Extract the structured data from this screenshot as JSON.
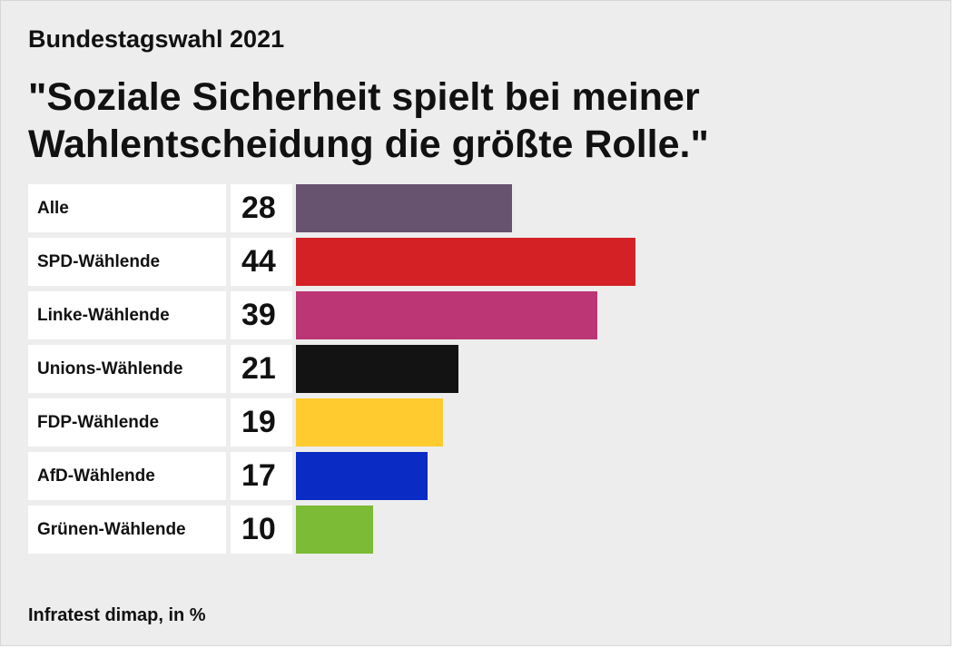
{
  "header": {
    "kicker": "Bundestagswahl 2021",
    "title": "\"Soziale Sicherheit spielt bei meiner Wahlentscheidung die größte Rolle.\""
  },
  "source": "Infratest dimap, in %",
  "chart_data": {
    "type": "bar",
    "orientation": "horizontal",
    "title": "\"Soziale Sicherheit spielt bei meiner Wahlentscheidung die größte Rolle.\"",
    "categories": [
      "Alle",
      "SPD-Wählende",
      "Linke-Wählende",
      "Unions-Wählende",
      "FDP-Wählende",
      "AfD-Wählende",
      "Grünen-Wählende"
    ],
    "values": [
      28,
      44,
      39,
      21,
      19,
      17,
      10
    ],
    "colors": [
      "#67526f",
      "#d42126",
      "#bc3575",
      "#131313",
      "#ffcb2e",
      "#0a2bc4",
      "#7bbb35"
    ],
    "xlim": [
      0,
      100
    ],
    "grid": false
  }
}
